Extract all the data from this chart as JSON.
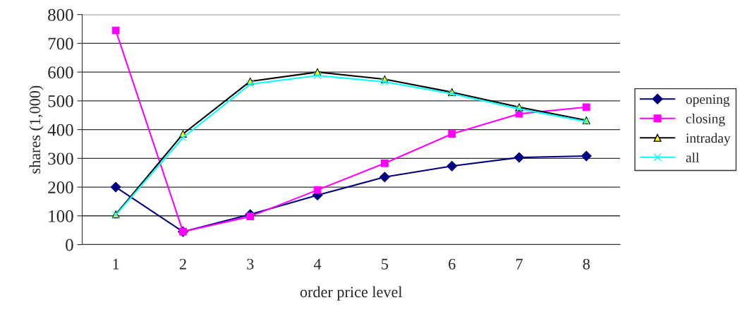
{
  "chart_data": {
    "type": "line",
    "xlabel": "order price level",
    "ylabel": "shares (1,000)",
    "categories": [
      "1",
      "2",
      "3",
      "4",
      "5",
      "6",
      "7",
      "8"
    ],
    "ylim": [
      0,
      800
    ],
    "yticks": [
      0,
      100,
      200,
      300,
      400,
      500,
      600,
      700,
      800
    ],
    "grid": "y",
    "legend": "right",
    "series": [
      {
        "name": "opening",
        "color": "#000080",
        "marker": "diamond",
        "values": [
          200,
          45,
          105,
          172,
          235,
          273,
          303,
          308
        ]
      },
      {
        "name": "closing",
        "color": "#ff00ff",
        "marker": "square",
        "values": [
          745,
          45,
          98,
          190,
          283,
          385,
          455,
          478
        ]
      },
      {
        "name": "intraday",
        "color": "#000000",
        "marker": "triangle",
        "values": [
          105,
          385,
          568,
          600,
          575,
          530,
          478,
          432
        ]
      },
      {
        "name": "all",
        "color": "#00ffff",
        "marker": "cross",
        "values": [
          103,
          372,
          558,
          588,
          566,
          525,
          472,
          428
        ]
      }
    ]
  }
}
